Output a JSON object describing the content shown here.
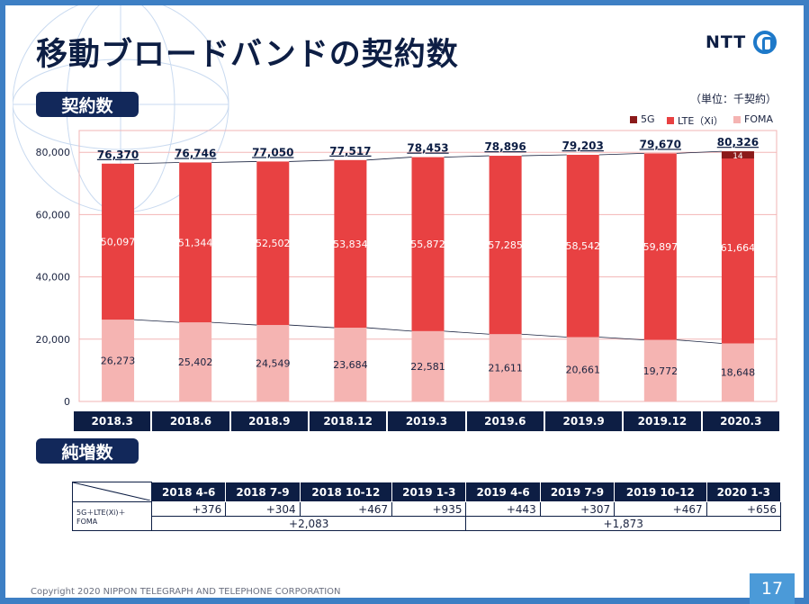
{
  "page": {
    "title": "移動ブロードバンドの契約数",
    "logo_text": "NTT",
    "unit_note": "（単位：千契約）",
    "footer": "Copyright 2020 NIPPON TELEGRAPH AND TELEPHONE CORPORATION",
    "page_number": "17"
  },
  "sections": {
    "contracts_label": "契約数",
    "net_increase_label": "純増数"
  },
  "colors": {
    "fiveg": "#8b1a1a",
    "lte": "#e84142",
    "foma": "#f5b4b2",
    "navy": "#0d1e44"
  },
  "chart_data": {
    "type": "bar",
    "stacked": true,
    "categories": [
      "2018.3",
      "2018.6",
      "2018.9",
      "2018.12",
      "2019.3",
      "2019.6",
      "2019.9",
      "2019.12",
      "2020.3"
    ],
    "series": [
      {
        "name": "FOMA",
        "values": [
          26273,
          25402,
          24549,
          23684,
          22581,
          21611,
          20661,
          19772,
          18648
        ]
      },
      {
        "name": "LTE（Xi）",
        "values": [
          50097,
          51344,
          52502,
          53834,
          55872,
          57285,
          58542,
          59897,
          61664
        ]
      },
      {
        "name": "5G",
        "values": [
          0,
          0,
          0,
          0,
          0,
          0,
          0,
          0,
          14
        ]
      }
    ],
    "totals": [
      76370,
      76746,
      77050,
      77517,
      78453,
      78896,
      79203,
      79670,
      80326
    ],
    "total_labels": [
      "76,370",
      "76,746",
      "77,050",
      "77,517",
      "78,453",
      "78,896",
      "79,203",
      "79,670",
      "80,326"
    ],
    "foma_labels": [
      "26,273",
      "25,402",
      "24,549",
      "23,684",
      "22,581",
      "21,611",
      "20,661",
      "19,772",
      "18,648"
    ],
    "lte_labels": [
      "50,097",
      "51,344",
      "52,502",
      "53,834",
      "55,872",
      "57,285",
      "58,542",
      "59,897",
      "61,664"
    ],
    "fiveg_labels": [
      "",
      "",
      "",
      "",
      "",
      "",
      "",
      "",
      "14"
    ],
    "ylim": [
      0,
      87000
    ],
    "yticks": [
      0,
      20000,
      40000,
      60000,
      80000
    ],
    "ytick_labels": [
      "0",
      "20,000",
      "40,000",
      "60,000",
      "80,000"
    ],
    "legend": {
      "position": "top-right",
      "entries": [
        "5G",
        "LTE（Xi）",
        "FOMA"
      ]
    },
    "grid": true
  },
  "net_increase": {
    "headers": [
      "2018 4-6",
      "2018 7-9",
      "2018 10-12",
      "2019 1-3",
      "2019 4-6",
      "2019 7-9",
      "2019 10-12",
      "2020 1-3"
    ],
    "row_label": "5G＋LTE(Xi)＋ FOMA",
    "quarterly": [
      "+376",
      "+304",
      "+467",
      "+935",
      "+443",
      "+307",
      "+467",
      "+656"
    ],
    "annual": [
      "+2,083",
      "+1,873"
    ]
  }
}
